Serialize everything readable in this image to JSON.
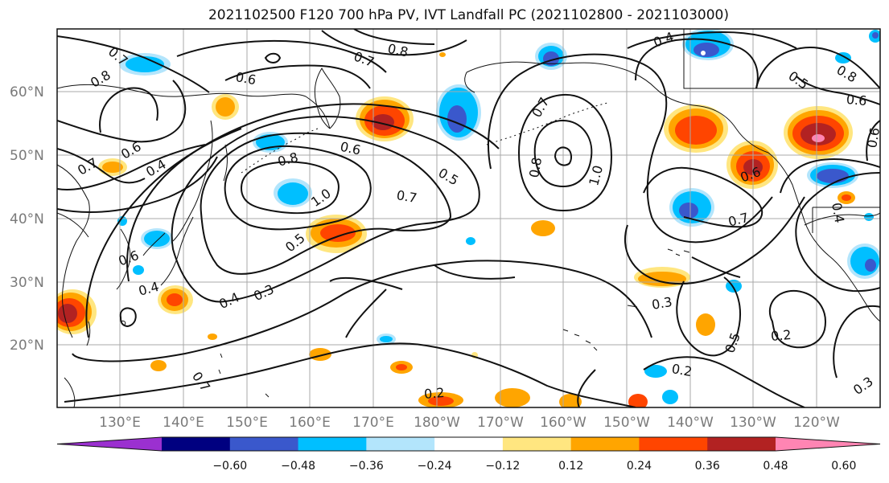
{
  "title": "2021102500 F120 700 hPa PV, IVT Landfall PC (2021102800 - 2021103000)",
  "latitude_labels": [
    "60°N",
    "50°N",
    "40°N",
    "30°N",
    "20°N"
  ],
  "longitude_labels": [
    "130°E",
    "140°E",
    "150°E",
    "160°E",
    "170°E",
    "180°W",
    "170°W",
    "160°W",
    "150°W",
    "140°W",
    "130°W",
    "120°W"
  ],
  "contour_labels": [
    "0.8",
    "0.7",
    "0.6",
    "0.7",
    "0.8",
    "0.4",
    "0.5",
    "0.8",
    "0.6",
    "0.6",
    "0.7",
    "0.6",
    "0.4",
    "0.8",
    "1.0",
    "0.6",
    "0.5",
    "0.7",
    "0.8",
    "1.0",
    "0.7",
    "0.5",
    "0.6",
    "0.7",
    "0.4",
    "0.6",
    "0.4",
    "0.4",
    "0.3",
    "0.3",
    "0.5",
    "0.2",
    "0.2",
    "0.2",
    "0.3",
    "0.7"
  ],
  "colorbar": {
    "ticks": [
      "−0.60",
      "−0.48",
      "−0.36",
      "−0.24",
      "−0.12",
      "0.12",
      "0.24",
      "0.36",
      "0.48",
      "0.60"
    ],
    "colors": [
      "#9b30d0",
      "#000080",
      "#3a58cc",
      "#00bfff",
      "#b3e5fc",
      "#ffffff",
      "#ffe680",
      "#ffa500",
      "#ff4500",
      "#b22222",
      "#ff85b3"
    ]
  }
}
